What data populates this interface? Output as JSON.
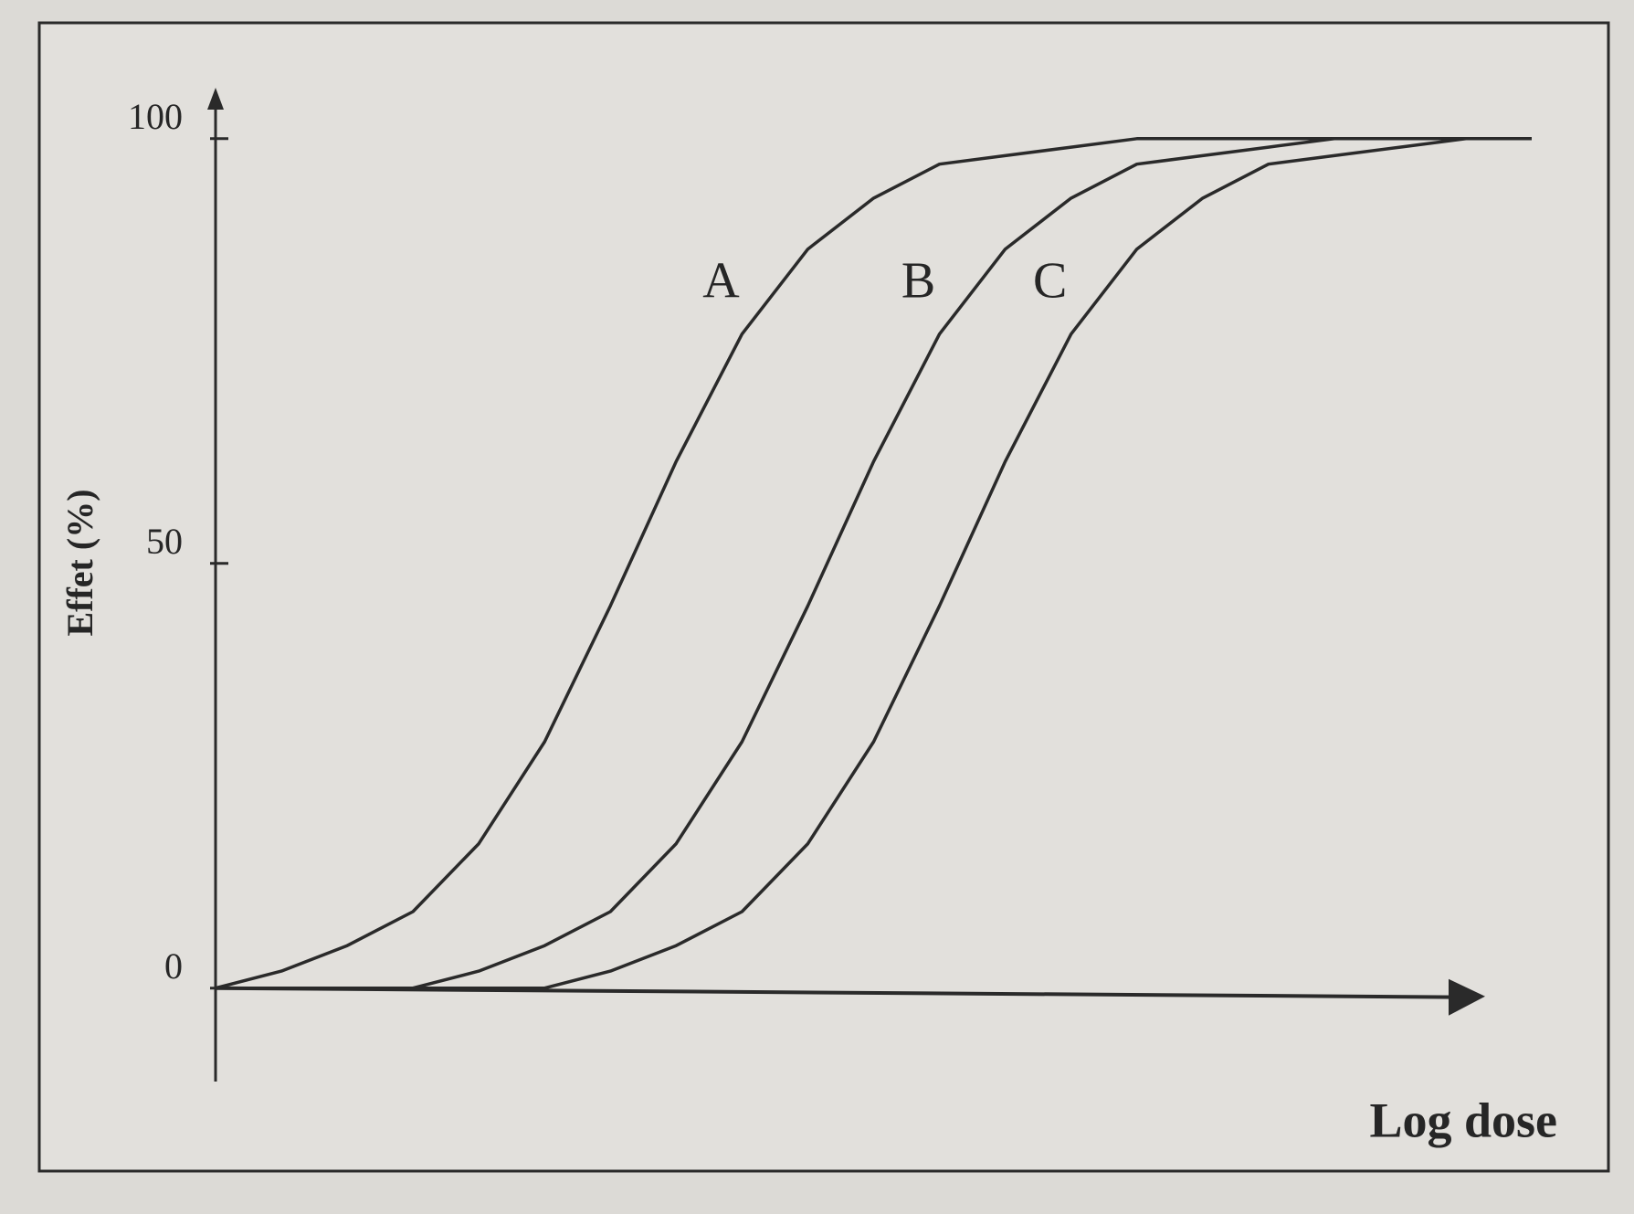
{
  "chart_data": {
    "type": "line",
    "x_label": "Log dose",
    "y_label": "Effet (%)",
    "x": [
      0,
      0.5,
      1,
      1.5,
      2,
      2.5,
      3,
      3.5,
      4,
      4.5,
      5,
      5.5,
      6,
      6.5,
      7,
      7.5,
      8,
      8.5,
      9,
      9.5,
      10
    ],
    "series": [
      {
        "name": "A",
        "color": "#2a2a2a",
        "values": [
          0,
          2,
          5,
          9,
          17,
          29,
          45,
          62,
          77,
          87,
          93,
          97,
          98,
          99,
          100,
          100,
          100,
          100,
          100,
          100,
          100
        ]
      },
      {
        "name": "B",
        "color": "#2a2a2a",
        "values": [
          0,
          0,
          0,
          0,
          2,
          5,
          9,
          17,
          29,
          45,
          62,
          77,
          87,
          93,
          97,
          98,
          99,
          100,
          100,
          100,
          100
        ]
      },
      {
        "name": "C",
        "color": "#2a2a2a",
        "values": [
          0,
          0,
          0,
          0,
          0,
          0,
          2,
          5,
          9,
          17,
          29,
          45,
          62,
          77,
          87,
          93,
          97,
          98,
          99,
          100,
          100
        ]
      }
    ],
    "xlim": [
      0,
      10
    ],
    "ylim": [
      -11,
      106
    ],
    "yticks": [
      0,
      50,
      100
    ],
    "grid": false
  }
}
